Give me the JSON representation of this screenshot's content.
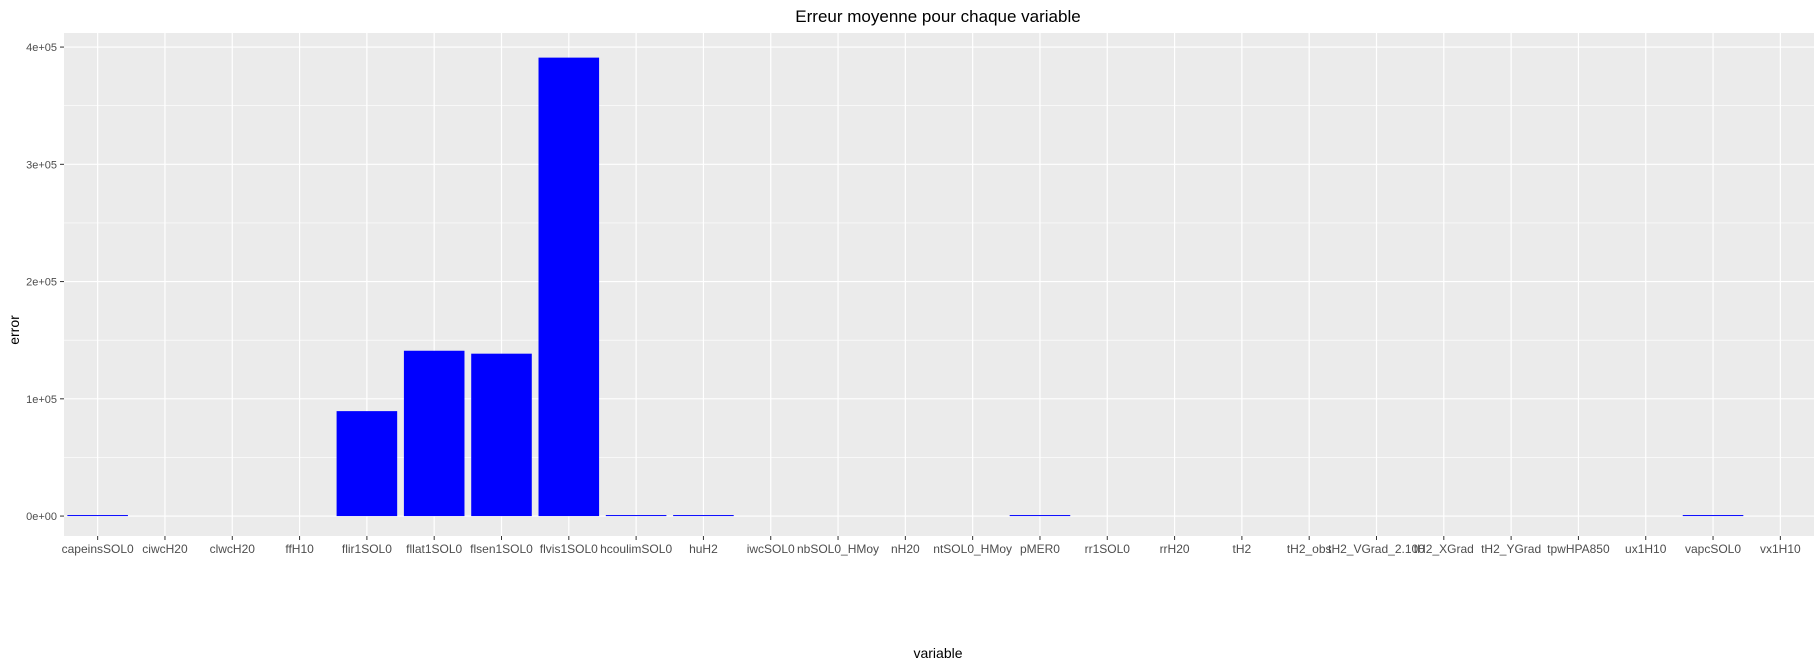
{
  "chart_data": {
    "type": "bar",
    "title": "Erreur moyenne pour chaque variable",
    "xlabel": "variable",
    "ylabel": "error",
    "ylim": [
      -17000,
      412000
    ],
    "yticks": [
      0,
      100000,
      200000,
      300000,
      400000
    ],
    "ytick_labels": [
      "0e+00",
      "1e+05",
      "2e+05",
      "3e+05",
      "4e+05"
    ],
    "bar_color": "#0000FF",
    "panel_background": "#EBEBEB",
    "grid_color": "#FFFFFF",
    "grid": true,
    "legend": "none",
    "categories": [
      "capeinsSOL0",
      "ciwcH20",
      "clwcH20",
      "ffH10",
      "flir1SOL0",
      "fllat1SOL0",
      "flsen1SOL0",
      "flvis1SOL0",
      "hcoulimSOL0",
      "huH2",
      "iwcSOL0",
      "nbSOL0_HMoy",
      "nH20",
      "ntSOL0_HMoy",
      "pMER0",
      "rr1SOL0",
      "rrH20",
      "tH2",
      "tH2_obs",
      "tH2_VGrad_2.100",
      "tH2_XGrad",
      "tH2_YGrad",
      "tpwHPA850",
      "ux1H10",
      "vapcSOL0",
      "vx1H10"
    ],
    "values": [
      400,
      0,
      0,
      0,
      89500,
      141000,
      138500,
      391000,
      300,
      250,
      0,
      0,
      0,
      0,
      500,
      0,
      0,
      0,
      0,
      0,
      0,
      0,
      0,
      0,
      600,
      0
    ]
  }
}
